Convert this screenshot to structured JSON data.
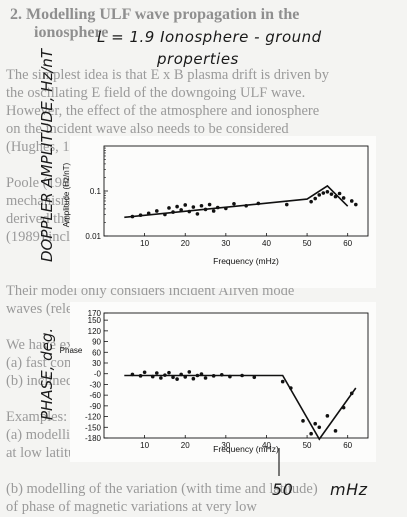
{
  "faded_text": [
    {
      "text": "2.  Modelling ULF wave propagation in the",
      "cls": "fh",
      "x": 10,
      "y": 6
    },
    {
      "text": "ionosphere",
      "cls": "fh",
      "x": 34,
      "y": 24
    },
    {
      "text": "The simplest idea is that E x B plasma drift is driven by",
      "x": 6,
      "y": 67
    },
    {
      "text": "the oscillating E field of the downgoing ULF wave.",
      "x": 6,
      "y": 85
    },
    {
      "text": "However, the effect of the atmosphere and ionosphere",
      "x": 6,
      "y": 103
    },
    {
      "text": "on the incident wave also needs to be considered",
      "x": 6,
      "y": 121
    },
    {
      "text": "(Hughes, 1974; Hughes and Southwood, 1976).",
      "x": 6,
      "y": 139
    },
    {
      "text": "Poole (1988) showed that there are numerous",
      "x": 6,
      "y": 175
    },
    {
      "text": "mechanisms in the coupling process, and",
      "x": 6,
      "y": 193
    },
    {
      "text": "derived the relation Doppler shift. Sutcliffe and Poole",
      "x": 6,
      "y": 211
    },
    {
      "text": "(1989) included realistic ionosphere in the model.",
      "x": 6,
      "y": 229
    },
    {
      "text": "Their model only considers incident Alfven mode",
      "x": 6,
      "y": 283
    },
    {
      "text": "waves (relevant only to FLRs).",
      "x": 6,
      "y": 301
    },
    {
      "text": "We have extended this modelling to include:",
      "x": 6,
      "y": 337
    },
    {
      "text": "(a)  fast compressional waves",
      "x": 6,
      "y": 355
    },
    {
      "text": "(b)  inclined magnetic fields.",
      "x": 6,
      "y": 373
    },
    {
      "text": "Examples:",
      "x": 6,
      "y": 409
    },
    {
      "text": "(a)  modelling of the observed Doppler-ionospheric phase",
      "x": 6,
      "y": 427
    },
    {
      "text": "       at low latitudes",
      "x": 6,
      "y": 445
    },
    {
      "text": "(b)  modelling of the variation (with time and latitude)",
      "x": 6,
      "y": 481
    },
    {
      "text": "       of phase of magnetic variations at very low",
      "x": 6,
      "y": 499
    }
  ],
  "handwriting": {
    "title_line1": "L = 1.9   Ionosphere - ground",
    "title_line2": "properties",
    "ylabel_top": "DOPPLER AMPLITUDE, Hz/nT",
    "ylabel_bottom": "PHASE, deg.",
    "fifty": "50",
    "mhz": "mHz"
  },
  "chart_data": [
    {
      "type": "scatter",
      "xlabel": "Frequency (mHz)",
      "ylabel": "Amplitude (Hz/nT)",
      "y_scale": "log",
      "xlim": [
        0,
        65
      ],
      "ylim": [
        0.01,
        1
      ],
      "x_ticks": [
        10,
        20,
        30,
        40,
        50,
        60
      ],
      "y_ticks": [
        {
          "label": "0.01",
          "value": 0.01
        },
        {
          "label": "0.1",
          "value": 0.1
        }
      ],
      "points": [
        [
          7,
          0.027
        ],
        [
          9,
          0.029
        ],
        [
          11,
          0.032
        ],
        [
          13,
          0.036
        ],
        [
          15,
          0.03
        ],
        [
          16,
          0.042
        ],
        [
          17,
          0.034
        ],
        [
          18,
          0.045
        ],
        [
          19,
          0.038
        ],
        [
          20,
          0.049
        ],
        [
          21,
          0.035
        ],
        [
          22,
          0.044
        ],
        [
          23,
          0.031
        ],
        [
          24,
          0.047
        ],
        [
          25,
          0.039
        ],
        [
          26,
          0.05
        ],
        [
          27,
          0.036
        ],
        [
          28,
          0.043
        ],
        [
          30,
          0.041
        ],
        [
          32,
          0.052
        ],
        [
          35,
          0.047
        ],
        [
          38,
          0.053
        ],
        [
          45,
          0.05
        ],
        [
          51,
          0.058
        ],
        [
          52,
          0.068
        ],
        [
          53,
          0.082
        ],
        [
          54,
          0.09
        ],
        [
          55,
          0.096
        ],
        [
          56,
          0.085
        ],
        [
          57,
          0.075
        ],
        [
          58,
          0.088
        ],
        [
          59,
          0.07
        ],
        [
          61,
          0.06
        ],
        [
          62,
          0.05
        ]
      ],
      "model_curve": [
        [
          5,
          0.026
        ],
        [
          50,
          0.066
        ],
        [
          55,
          0.13
        ],
        [
          60,
          0.046
        ]
      ]
    },
    {
      "type": "scatter",
      "xlabel": "Frequency (mHz)",
      "ylabel": "Phase",
      "xlim": [
        0,
        65
      ],
      "ylim": [
        -180,
        170
      ],
      "x_ticks": [
        10,
        20,
        30,
        40,
        50,
        60
      ],
      "y_ticks": [
        170,
        150,
        120,
        90,
        60,
        30,
        0,
        -30,
        -60,
        -90,
        -120,
        -150,
        -180
      ],
      "y_tick_labels": [
        "170",
        "150",
        "120",
        "90",
        "60",
        "30",
        "-0",
        "-30",
        "-60",
        "-90",
        "-120",
        "-150",
        "-180"
      ],
      "points": [
        [
          7,
          -2
        ],
        [
          9,
          -6
        ],
        [
          10,
          4
        ],
        [
          12,
          -8
        ],
        [
          13,
          2
        ],
        [
          14,
          -12
        ],
        [
          15,
          -4
        ],
        [
          16,
          3
        ],
        [
          17,
          -10
        ],
        [
          18,
          -15
        ],
        [
          19,
          -2
        ],
        [
          20,
          -9
        ],
        [
          21,
          5
        ],
        [
          22,
          -14
        ],
        [
          23,
          -5
        ],
        [
          24,
          -1
        ],
        [
          25,
          -12
        ],
        [
          27,
          -6
        ],
        [
          29,
          -3
        ],
        [
          31,
          -8
        ],
        [
          34,
          -5
        ],
        [
          37,
          -10
        ],
        [
          44,
          -22
        ],
        [
          46,
          -40
        ],
        [
          49,
          -132
        ],
        [
          51,
          -168
        ],
        [
          52,
          -140
        ],
        [
          53,
          -150
        ],
        [
          55,
          -118
        ],
        [
          57,
          -160
        ],
        [
          59,
          -95
        ],
        [
          61,
          -55
        ]
      ],
      "model_curve": [
        [
          5,
          -5
        ],
        [
          44,
          -5
        ],
        [
          53,
          -183
        ],
        [
          62,
          -40
        ]
      ]
    }
  ]
}
